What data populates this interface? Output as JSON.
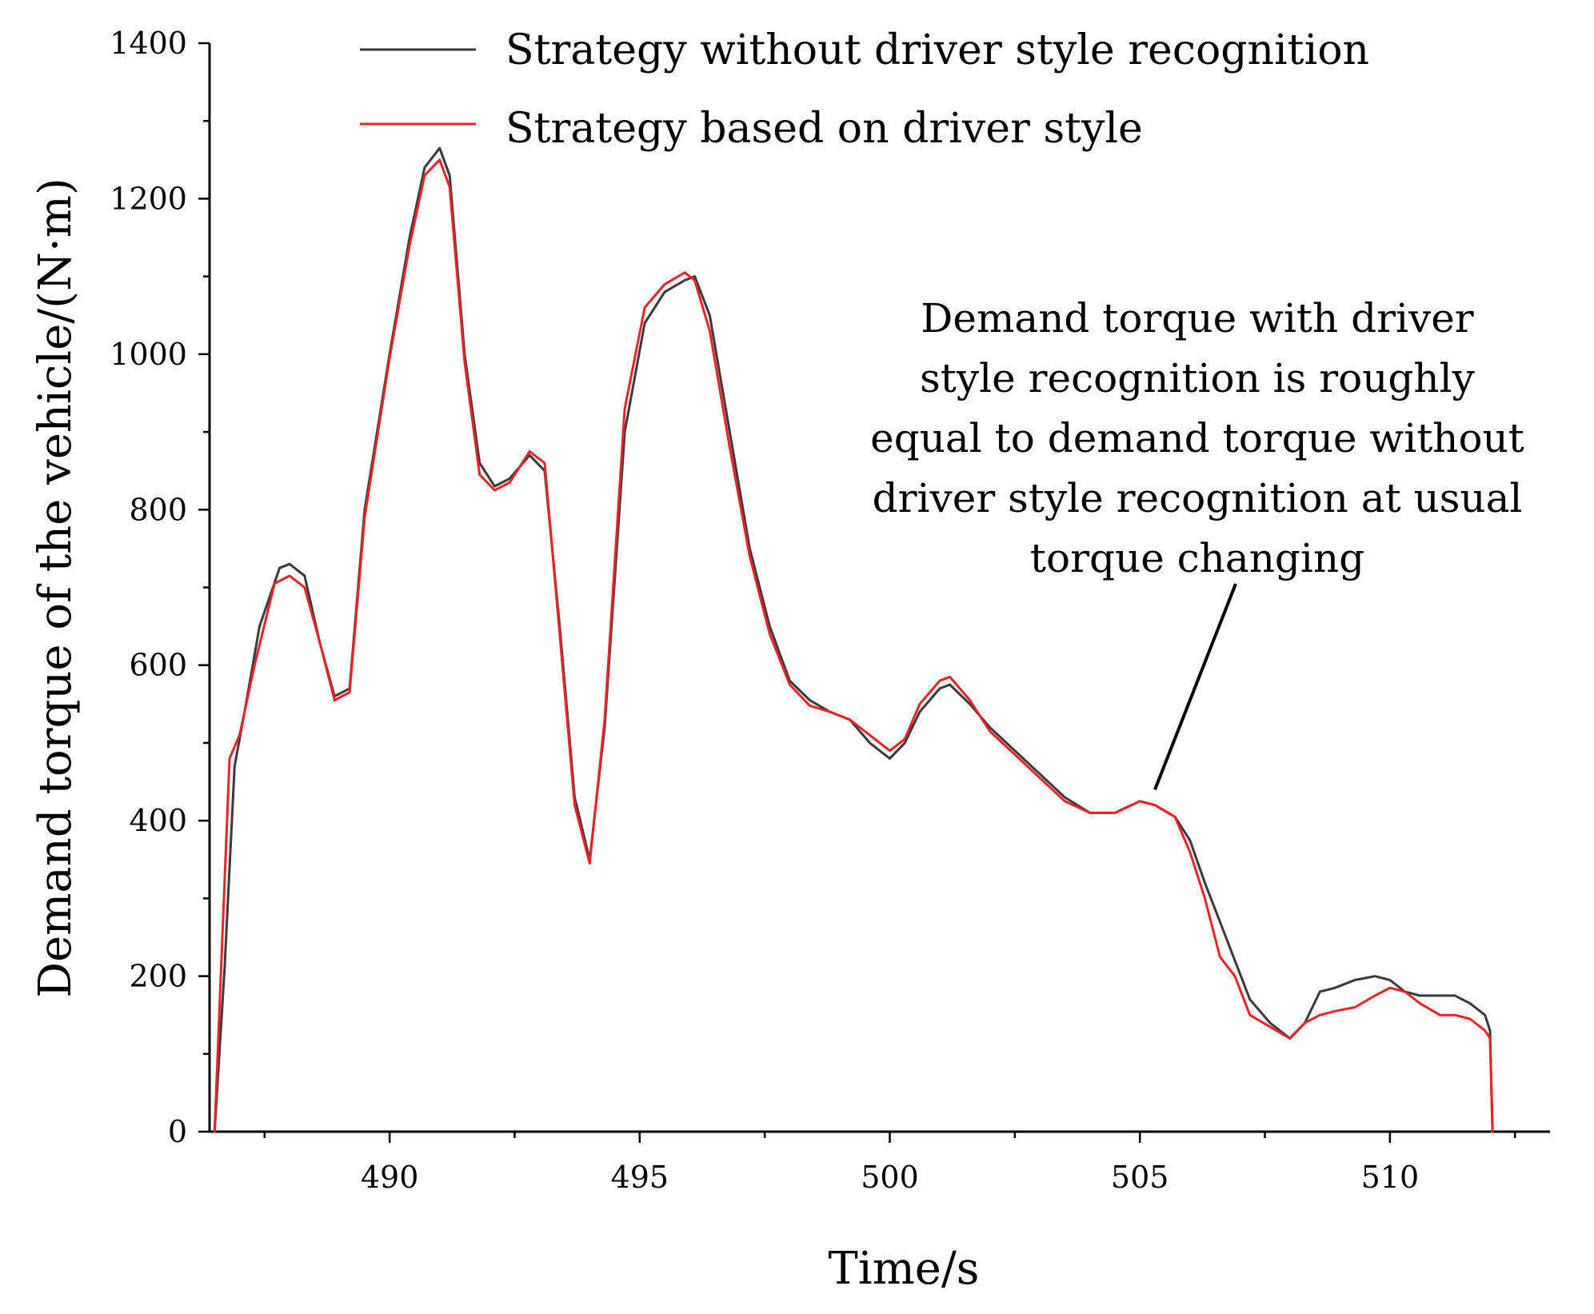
{
  "chart_data": {
    "type": "line",
    "title": "",
    "xlabel": "Time/s",
    "ylabel": "Demand torque of the vehicle/(N·m)",
    "xlim": [
      486.4,
      513.2
    ],
    "ylim": [
      0,
      1400
    ],
    "x_ticks": [
      490,
      495,
      500,
      505,
      510
    ],
    "x_tick_labels": [
      "490",
      "495",
      "500",
      "505",
      "510"
    ],
    "y_ticks": [
      0,
      200,
      400,
      600,
      800,
      1000,
      1200,
      1400
    ],
    "y_tick_labels": [
      "0",
      "200",
      "400",
      "600",
      "800",
      "1000",
      "1200",
      "1400"
    ],
    "legend_position": "top",
    "series": [
      {
        "name": "Strategy without driver style recognition",
        "color": "#3a3a3a",
        "x": [
          486.5,
          486.7,
          486.9,
          487.1,
          487.4,
          487.8,
          488.0,
          488.3,
          488.6,
          488.9,
          489.2,
          489.5,
          490.0,
          490.4,
          490.7,
          491.0,
          491.2,
          491.5,
          491.8,
          492.1,
          492.4,
          492.8,
          493.1,
          493.4,
          493.7,
          494.0,
          494.3,
          494.7,
          495.1,
          495.5,
          495.9,
          496.1,
          496.4,
          496.8,
          497.2,
          497.6,
          498.0,
          498.4,
          498.8,
          499.2,
          499.6,
          500.0,
          500.3,
          500.6,
          501.0,
          501.2,
          501.6,
          502.0,
          502.5,
          503.0,
          503.5,
          504.0,
          504.5,
          505.0,
          505.3,
          505.7,
          506.0,
          506.3,
          506.6,
          506.9,
          507.2,
          507.6,
          508.0,
          508.3,
          508.6,
          508.9,
          509.3,
          509.7,
          510.0,
          510.3,
          510.6,
          511.0,
          511.3,
          511.6,
          511.9,
          512.0,
          512.05
        ],
        "y": [
          0,
          210,
          470,
          540,
          650,
          725,
          730,
          715,
          630,
          560,
          570,
          800,
          1000,
          1150,
          1240,
          1265,
          1230,
          1000,
          860,
          830,
          840,
          870,
          850,
          650,
          430,
          350,
          520,
          900,
          1040,
          1080,
          1095,
          1100,
          1050,
          900,
          750,
          650,
          580,
          555,
          540,
          530,
          500,
          480,
          500,
          540,
          570,
          575,
          550,
          520,
          490,
          460,
          430,
          410,
          410,
          425,
          420,
          405,
          375,
          320,
          270,
          220,
          170,
          140,
          120,
          140,
          180,
          185,
          195,
          200,
          195,
          180,
          175,
          175,
          175,
          165,
          150,
          130,
          0
        ]
      },
      {
        "name": "Strategy based on driver style",
        "color": "#e8242a",
        "x": [
          486.5,
          486.6,
          486.8,
          487.0,
          487.3,
          487.7,
          488.0,
          488.3,
          488.6,
          488.9,
          489.2,
          489.5,
          490.0,
          490.4,
          490.7,
          491.0,
          491.2,
          491.5,
          491.8,
          492.1,
          492.4,
          492.8,
          493.1,
          493.4,
          493.7,
          494.0,
          494.3,
          494.7,
          495.1,
          495.5,
          495.9,
          496.1,
          496.4,
          496.8,
          497.2,
          497.6,
          498.0,
          498.4,
          498.8,
          499.2,
          499.6,
          500.0,
          500.3,
          500.6,
          501.0,
          501.2,
          501.6,
          502.0,
          502.5,
          503.0,
          503.5,
          504.0,
          504.5,
          505.0,
          505.3,
          505.7,
          506.0,
          506.3,
          506.6,
          506.9,
          507.2,
          507.6,
          508.0,
          508.3,
          508.6,
          508.9,
          509.3,
          509.7,
          510.0,
          510.3,
          510.6,
          511.0,
          511.3,
          511.6,
          511.9,
          512.0,
          512.05
        ],
        "y": [
          0,
          160,
          480,
          510,
          600,
          705,
          715,
          700,
          630,
          555,
          565,
          790,
          995,
          1140,
          1230,
          1250,
          1215,
          990,
          845,
          825,
          835,
          875,
          860,
          640,
          420,
          345,
          530,
          930,
          1060,
          1090,
          1105,
          1095,
          1030,
          880,
          740,
          640,
          575,
          548,
          540,
          530,
          510,
          490,
          505,
          550,
          580,
          585,
          555,
          515,
          485,
          455,
          425,
          410,
          410,
          425,
          420,
          405,
          360,
          300,
          225,
          200,
          150,
          135,
          120,
          140,
          150,
          155,
          160,
          175,
          185,
          180,
          165,
          150,
          150,
          145,
          130,
          120,
          0
        ]
      }
    ],
    "annotation": {
      "lines": [
        "Demand torque with driver",
        "style recognition is roughly",
        "equal to demand torque without",
        "driver style recognition at usual",
        "torque changing"
      ],
      "points_to": {
        "x": 505.3,
        "y": 440
      }
    }
  }
}
